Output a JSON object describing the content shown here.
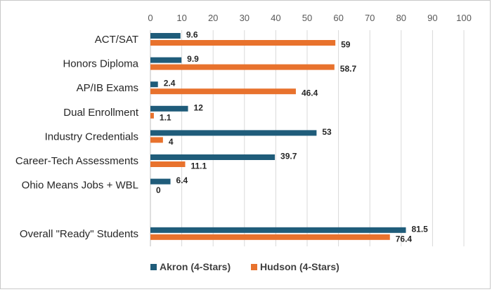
{
  "chart_data": {
    "type": "bar",
    "orientation": "horizontal",
    "categories": [
      "ACT/SAT",
      "Honors Diploma",
      "AP/IB Exams",
      "Dual Enrollment",
      "Industry Credentials",
      "Career-Tech Assessments",
      "Ohio Means Jobs + WBL",
      "",
      "Overall \"Ready\" Students"
    ],
    "series": [
      {
        "name": "Akron (4-Stars)",
        "color": "#1f5c7a",
        "values": [
          9.6,
          9.9,
          2.4,
          12,
          53,
          39.7,
          6.4,
          null,
          81.5
        ]
      },
      {
        "name": "Hudson (4-Stars)",
        "color": "#e8722d",
        "values": [
          59,
          58.7,
          46.4,
          1.1,
          4,
          11.1,
          0,
          null,
          76.4
        ]
      }
    ],
    "xlim": [
      0,
      100
    ],
    "xticks": [
      0,
      10,
      20,
      30,
      40,
      50,
      60,
      70,
      80,
      90,
      100
    ],
    "x_axis_position": "top",
    "grid": true,
    "legend_position": "bottom",
    "title": "",
    "xlabel": "",
    "ylabel": ""
  }
}
